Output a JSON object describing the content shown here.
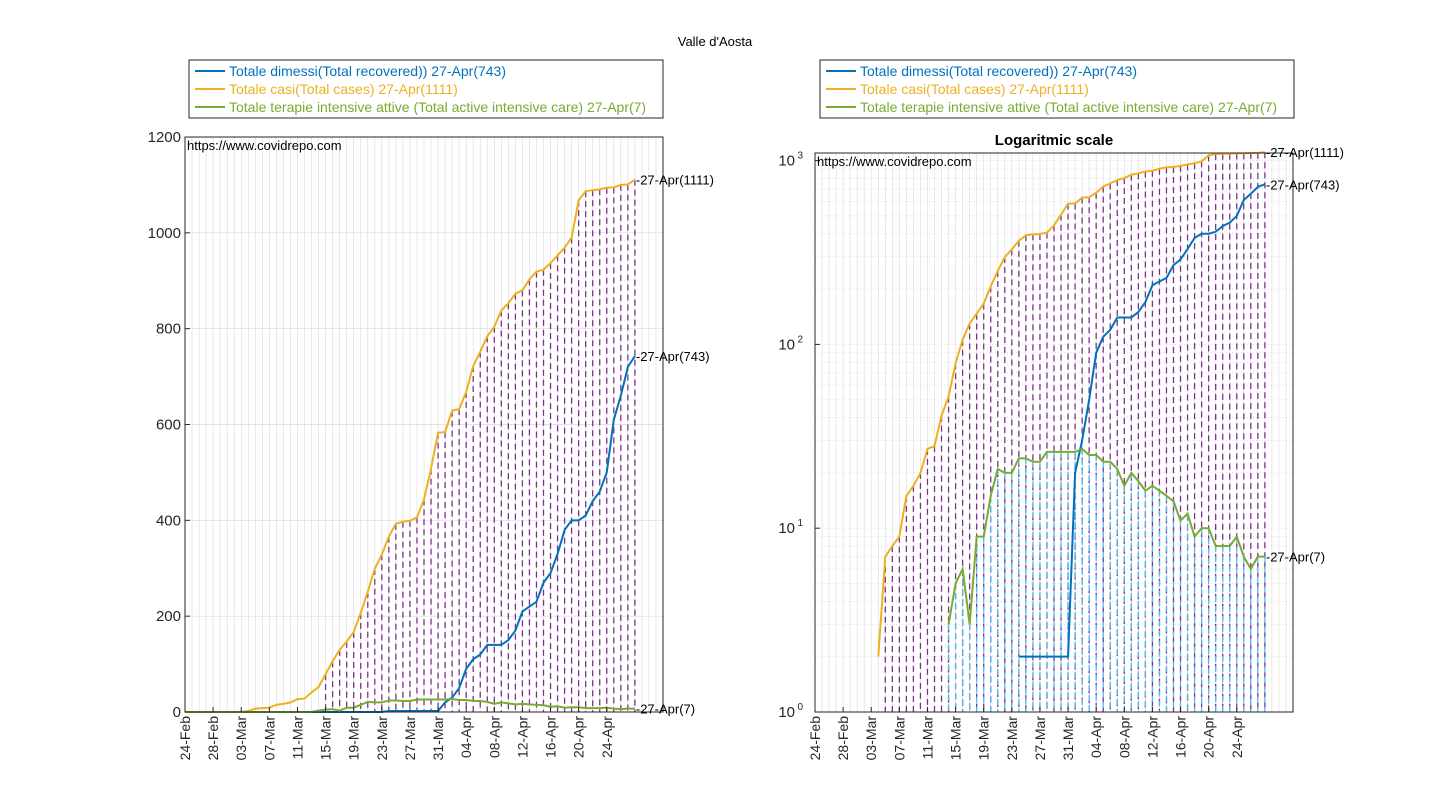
{
  "figure_title": "Valle d'Aosta",
  "watermark": "https://www.covidrepo.com",
  "legend": [
    {
      "label": "Totale dimessi(Total recovered)) 27-Apr(743)",
      "color": "#0072BD"
    },
    {
      "label": "Totale casi(Total cases) 27-Apr(1111)",
      "color": "#EDB120"
    },
    {
      "label": "Totale terapie intensive attive (Total active intensive care) 27-Apr(7)",
      "color": "#77AC30"
    }
  ],
  "end_labels": {
    "recovered": "-27-Apr(743)",
    "cases": "-27-Apr(1111)",
    "icu": "-27-Apr(7)"
  },
  "colors": {
    "recovered": "#0072BD",
    "cases": "#EDB120",
    "icu": "#77AC30",
    "purple_marks": "#7E2F8E",
    "cyan_marks": "#4DBEEE",
    "grid": "#d9d9d9"
  },
  "chart_data": [
    {
      "type": "line",
      "title": "",
      "xlabel": "",
      "ylabel": "",
      "yscale": "linear",
      "ylim": [
        0,
        1200
      ],
      "yticks": [
        0,
        200,
        400,
        600,
        800,
        1000,
        1200
      ],
      "xlim": [
        "24-Feb",
        "27-Apr"
      ],
      "xticks": [
        "24-Feb",
        "28-Feb",
        "03-Mar",
        "07-Mar",
        "11-Mar",
        "15-Mar",
        "19-Mar",
        "23-Mar",
        "27-Mar",
        "31-Mar",
        "04-Apr",
        "08-Apr",
        "12-Apr",
        "16-Apr",
        "20-Apr",
        "24-Apr"
      ],
      "grid": true,
      "legend_position": "top (outside)",
      "first_date": "24-Feb",
      "series": [
        {
          "name": "Totale dimessi(Total recovered)) 27-Apr(743)",
          "key": "recovered",
          "values": [
            0,
            0,
            0,
            0,
            0,
            0,
            0,
            0,
            0,
            0,
            0,
            0,
            0,
            0,
            0,
            0,
            0,
            0,
            0,
            0,
            0,
            0,
            0,
            0,
            0,
            0,
            0,
            0,
            0,
            2,
            2,
            2,
            2,
            2,
            2,
            2,
            2,
            20,
            30,
            50,
            90,
            110,
            120,
            140,
            140,
            140,
            150,
            170,
            210,
            220,
            230,
            270,
            290,
            330,
            380,
            400,
            400,
            410,
            440,
            460,
            500,
            610,
            660,
            720,
            743
          ]
        },
        {
          "name": "Totale casi(Total cases) 27-Apr(1111)",
          "key": "cases",
          "values": [
            0,
            0,
            0,
            0,
            0,
            0,
            0,
            0,
            0,
            2,
            7,
            8,
            9,
            15,
            17,
            20,
            27,
            28,
            41,
            52,
            79,
            106,
            130,
            147,
            167,
            207,
            251,
            299,
            329,
            366,
            393,
            397,
            399,
            406,
            444,
            508,
            583,
            584,
            629,
            632,
            668,
            722,
            752,
            784,
            804,
            838,
            853,
            873,
            880,
            903,
            919,
            923,
            937,
            953,
            969,
            990,
            1068,
            1087,
            1089,
            1091,
            1094,
            1095,
            1100,
            1101,
            1111
          ]
        },
        {
          "name": "Totale terapie intensive attive (Total active intensive care) 27-Apr(7)",
          "key": "icu",
          "values": [
            0,
            0,
            0,
            0,
            0,
            0,
            0,
            0,
            0,
            0,
            0,
            0,
            0,
            0,
            0,
            0,
            0,
            0,
            0,
            3,
            5,
            6,
            3,
            9,
            9,
            15,
            21,
            20,
            20,
            24,
            24,
            23,
            23,
            26,
            26,
            26,
            26,
            26,
            27,
            25,
            25,
            23,
            23,
            21,
            17,
            20,
            18,
            16,
            17,
            16,
            15,
            14,
            11,
            12,
            9,
            10,
            10,
            8,
            8,
            8,
            9,
            7,
            6,
            7,
            7
          ]
        }
      ]
    },
    {
      "type": "line",
      "title": "Logaritmic scale",
      "xlabel": "",
      "ylabel": "",
      "yscale": "log",
      "ylim": [
        1,
        1100
      ],
      "yticks": [
        "10^0",
        "10^1",
        "10^2",
        "10^3"
      ],
      "xlim": [
        "24-Feb",
        "27-Apr"
      ],
      "xticks": [
        "24-Feb",
        "28-Feb",
        "03-Mar",
        "07-Mar",
        "11-Mar",
        "15-Mar",
        "19-Mar",
        "23-Mar",
        "27-Mar",
        "31-Mar",
        "04-Apr",
        "08-Apr",
        "12-Apr",
        "16-Apr",
        "20-Apr",
        "24-Apr"
      ],
      "grid": true,
      "legend_position": "top (outside)",
      "series_ref": "same data as first chart"
    }
  ]
}
